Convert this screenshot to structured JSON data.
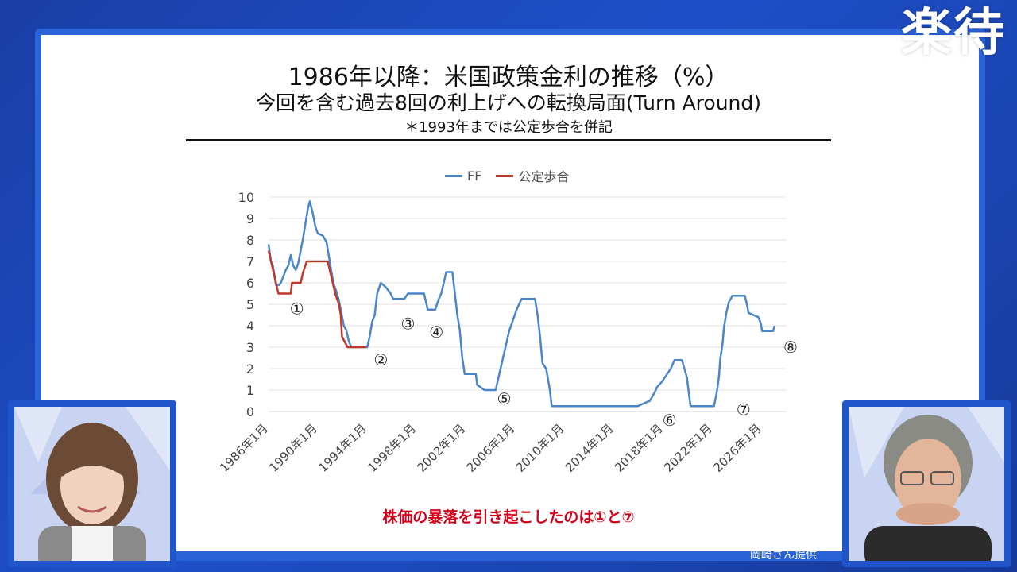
{
  "brand": {
    "logo_text": "楽待"
  },
  "titles": {
    "line1": "1986年以降：米国政策金利の推移（%）",
    "line2": "今回を含む過去8回の利上げへの転換局面(Turn Around)",
    "line3": "＊1993年までは公定歩合を併記"
  },
  "footnote": "株価の暴落を引き起こしたのは①と⑦",
  "credit": "岡崎さん提供",
  "chart_data": {
    "type": "line",
    "x_unit": "year",
    "xlim": [
      1986,
      2028.5
    ],
    "ylim": [
      0,
      10
    ],
    "y_ticks": [
      "0",
      "1",
      "2",
      "3",
      "4",
      "5",
      "6",
      "7",
      "8",
      "9",
      "10"
    ],
    "x_ticks": [
      {
        "x": 1986,
        "label": "1986年1月"
      },
      {
        "x": 1990,
        "label": "1990年1月"
      },
      {
        "x": 1994,
        "label": "1994年1月"
      },
      {
        "x": 1998,
        "label": "1998年1月"
      },
      {
        "x": 2002,
        "label": "2002年1月"
      },
      {
        "x": 2006,
        "label": "2006年1月"
      },
      {
        "x": 2010,
        "label": "2010年1月"
      },
      {
        "x": 2014,
        "label": "2014年1月"
      },
      {
        "x": 2018,
        "label": "2018年1月"
      },
      {
        "x": 2022,
        "label": "2022年1月"
      },
      {
        "x": 2026,
        "label": "2026年1月"
      }
    ],
    "grid": true,
    "legend_position": "top-center",
    "series": [
      {
        "name": "FF",
        "color": "#4a86c8",
        "points": [
          [
            1986.0,
            7.8
          ],
          [
            1986.2,
            7.0
          ],
          [
            1986.35,
            6.8
          ],
          [
            1986.5,
            6.3
          ],
          [
            1986.6,
            5.9
          ],
          [
            1986.85,
            5.9
          ],
          [
            1987.0,
            6.0
          ],
          [
            1987.2,
            6.3
          ],
          [
            1987.4,
            6.6
          ],
          [
            1987.6,
            6.8
          ],
          [
            1987.8,
            7.3
          ],
          [
            1988.0,
            6.8
          ],
          [
            1988.2,
            6.6
          ],
          [
            1988.4,
            6.9
          ],
          [
            1988.6,
            7.5
          ],
          [
            1988.8,
            8.1
          ],
          [
            1989.0,
            8.8
          ],
          [
            1989.2,
            9.5
          ],
          [
            1989.35,
            9.8
          ],
          [
            1989.6,
            9.2
          ],
          [
            1989.8,
            8.6
          ],
          [
            1990.0,
            8.3
          ],
          [
            1990.4,
            8.2
          ],
          [
            1990.7,
            7.9
          ],
          [
            1990.9,
            7.2
          ],
          [
            1991.1,
            6.5
          ],
          [
            1991.3,
            5.9
          ],
          [
            1991.5,
            5.6
          ],
          [
            1991.7,
            5.2
          ],
          [
            1991.9,
            4.6
          ],
          [
            1992.1,
            4.0
          ],
          [
            1992.3,
            3.8
          ],
          [
            1992.5,
            3.3
          ],
          [
            1992.7,
            3.0
          ],
          [
            1993.5,
            3.0
          ],
          [
            1994.0,
            3.0
          ],
          [
            1994.2,
            3.5
          ],
          [
            1994.4,
            4.2
          ],
          [
            1994.6,
            4.5
          ],
          [
            1994.8,
            5.5
          ],
          [
            1995.1,
            6.0
          ],
          [
            1995.5,
            5.8
          ],
          [
            1995.9,
            5.5
          ],
          [
            1996.1,
            5.25
          ],
          [
            1997.0,
            5.25
          ],
          [
            1997.3,
            5.5
          ],
          [
            1998.6,
            5.5
          ],
          [
            1998.8,
            5.0
          ],
          [
            1998.9,
            4.75
          ],
          [
            1999.5,
            4.75
          ],
          [
            1999.8,
            5.25
          ],
          [
            2000.0,
            5.5
          ],
          [
            2000.2,
            6.0
          ],
          [
            2000.4,
            6.5
          ],
          [
            2000.9,
            6.5
          ],
          [
            2001.1,
            5.5
          ],
          [
            2001.3,
            4.5
          ],
          [
            2001.5,
            3.8
          ],
          [
            2001.7,
            2.5
          ],
          [
            2001.9,
            1.75
          ],
          [
            2002.8,
            1.75
          ],
          [
            2002.9,
            1.25
          ],
          [
            2003.5,
            1.0
          ],
          [
            2004.4,
            1.0
          ],
          [
            2004.6,
            1.5
          ],
          [
            2004.9,
            2.25
          ],
          [
            2005.2,
            3.0
          ],
          [
            2005.5,
            3.75
          ],
          [
            2005.8,
            4.25
          ],
          [
            2006.1,
            4.75
          ],
          [
            2006.5,
            5.25
          ],
          [
            2007.6,
            5.25
          ],
          [
            2007.8,
            4.5
          ],
          [
            2008.0,
            3.5
          ],
          [
            2008.2,
            2.25
          ],
          [
            2008.5,
            2.0
          ],
          [
            2008.8,
            1.0
          ],
          [
            2008.95,
            0.25
          ],
          [
            2015.9,
            0.25
          ],
          [
            2016.9,
            0.5
          ],
          [
            2017.3,
            0.9
          ],
          [
            2017.5,
            1.15
          ],
          [
            2017.9,
            1.4
          ],
          [
            2018.3,
            1.75
          ],
          [
            2018.6,
            2.0
          ],
          [
            2018.9,
            2.4
          ],
          [
            2019.5,
            2.4
          ],
          [
            2019.7,
            2.0
          ],
          [
            2019.9,
            1.6
          ],
          [
            2020.2,
            0.25
          ],
          [
            2022.1,
            0.25
          ],
          [
            2022.3,
            0.8
          ],
          [
            2022.5,
            1.6
          ],
          [
            2022.6,
            2.4
          ],
          [
            2022.8,
            3.2
          ],
          [
            2022.9,
            3.9
          ],
          [
            2023.1,
            4.6
          ],
          [
            2023.3,
            5.1
          ],
          [
            2023.6,
            5.4
          ],
          [
            2024.6,
            5.4
          ],
          [
            2024.8,
            4.9
          ],
          [
            2024.9,
            4.6
          ],
          [
            2025.7,
            4.4
          ],
          [
            2025.9,
            4.1
          ],
          [
            2026.0,
            3.75
          ],
          [
            2026.9,
            3.75
          ],
          [
            2027.0,
            4.0
          ]
        ]
      },
      {
        "name": "公定歩合",
        "color": "#c0392b",
        "points": [
          [
            1986.0,
            7.5
          ],
          [
            1986.2,
            7.0
          ],
          [
            1986.4,
            6.5
          ],
          [
            1986.6,
            6.0
          ],
          [
            1986.8,
            5.5
          ],
          [
            1987.8,
            5.5
          ],
          [
            1987.9,
            6.0
          ],
          [
            1988.6,
            6.0
          ],
          [
            1988.8,
            6.5
          ],
          [
            1989.1,
            7.0
          ],
          [
            1990.8,
            7.0
          ],
          [
            1991.0,
            6.5
          ],
          [
            1991.2,
            6.0
          ],
          [
            1991.4,
            5.5
          ],
          [
            1991.7,
            5.0
          ],
          [
            1991.85,
            4.5
          ],
          [
            1991.95,
            3.5
          ],
          [
            1992.4,
            3.0
          ],
          [
            1993.9,
            3.0
          ]
        ]
      }
    ],
    "annotations": [
      {
        "label": "①",
        "x": 1988.3,
        "y": 4.8
      },
      {
        "label": "②",
        "x": 1995.1,
        "y": 2.4
      },
      {
        "label": "③",
        "x": 1997.3,
        "y": 4.1
      },
      {
        "label": "④",
        "x": 1999.6,
        "y": 3.7
      },
      {
        "label": "⑤",
        "x": 2005.1,
        "y": 0.6
      },
      {
        "label": "⑥",
        "x": 2018.5,
        "y": -0.4
      },
      {
        "label": "⑦",
        "x": 2024.5,
        "y": 0.1
      },
      {
        "label": "⑧",
        "x": 2028.3,
        "y": 3.0
      }
    ]
  }
}
